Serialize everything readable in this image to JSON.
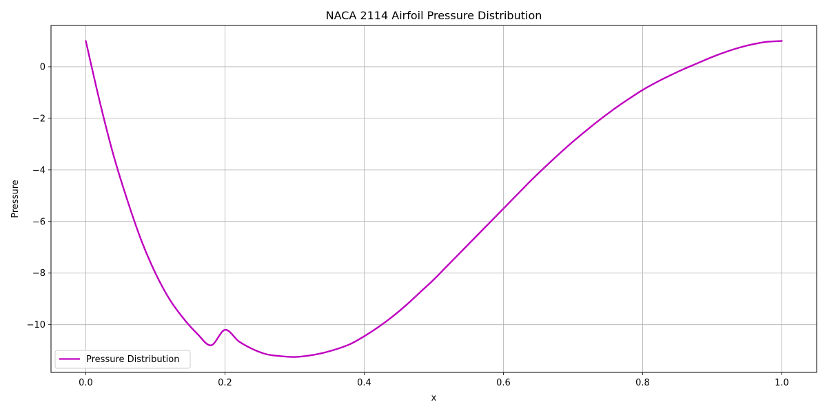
{
  "chart_data": {
    "type": "line",
    "title": "NACA 2114 Airfoil Pressure Distribution",
    "xlabel": "x",
    "ylabel": "Pressure",
    "xlim": [
      -0.05,
      1.05
    ],
    "ylim": [
      -11.85,
      1.6
    ],
    "xticks": [
      0.0,
      0.2,
      0.4,
      0.6,
      0.8,
      1.0
    ],
    "xtick_labels": [
      "0.0",
      "0.2",
      "0.4",
      "0.6",
      "0.8",
      "1.0"
    ],
    "yticks": [
      0,
      -2,
      -4,
      -6,
      -8,
      -10
    ],
    "ytick_labels": [
      "0",
      "−2",
      "−4",
      "−6",
      "−8",
      "−10"
    ],
    "grid": true,
    "legend_position": "lower-left",
    "series": [
      {
        "name": "Pressure Distribution",
        "color": "#bf00bf",
        "x": [
          0.0,
          0.02,
          0.04,
          0.06,
          0.08,
          0.1,
          0.12,
          0.14,
          0.16,
          0.18,
          0.2,
          0.22,
          0.24,
          0.26,
          0.28,
          0.3,
          0.32,
          0.34,
          0.36,
          0.38,
          0.4,
          0.42,
          0.44,
          0.46,
          0.48,
          0.5,
          0.52,
          0.54,
          0.56,
          0.58,
          0.6,
          0.62,
          0.64,
          0.66,
          0.68,
          0.7,
          0.72,
          0.74,
          0.76,
          0.78,
          0.8,
          0.82,
          0.84,
          0.86,
          0.88,
          0.9,
          0.92,
          0.94,
          0.96,
          0.98,
          1.0
        ],
        "y": [
          1.0,
          -1.35,
          -3.45,
          -5.2,
          -6.75,
          -8.0,
          -9.0,
          -9.75,
          -10.35,
          -10.8,
          -10.2,
          -10.65,
          -10.95,
          -11.15,
          -11.22,
          -11.25,
          -11.2,
          -11.1,
          -10.95,
          -10.75,
          -10.45,
          -10.1,
          -9.7,
          -9.25,
          -8.75,
          -8.25,
          -7.7,
          -7.15,
          -6.6,
          -6.05,
          -5.5,
          -4.95,
          -4.4,
          -3.88,
          -3.38,
          -2.9,
          -2.45,
          -2.02,
          -1.62,
          -1.25,
          -0.9,
          -0.6,
          -0.33,
          -0.08,
          0.15,
          0.38,
          0.58,
          0.75,
          0.88,
          0.97,
          1.0
        ]
      }
    ]
  }
}
